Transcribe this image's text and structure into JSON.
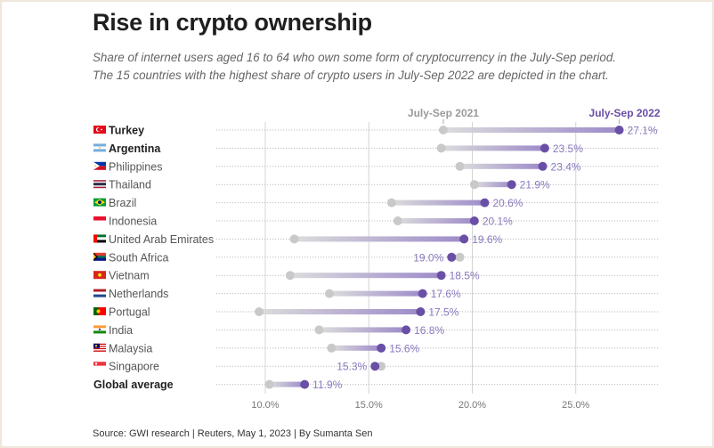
{
  "title": "Rise in crypto ownership",
  "subtitle_lines": [
    "Share of internet users aged 16 to 64 who own some form of cryptocurrency in the July-Sep period.",
    "The 15 countries with the highest share of crypto users in July-Sep 2022 are depicted in the chart."
  ],
  "source": "Source: GWI research | Reuters, May 1, 2023 | By Sumanta Sen",
  "colors": {
    "accent_2022": "#6a4fa6",
    "dot_2021": "#c9c9c9",
    "label_2022": "#8a78bd",
    "grid": "#d4d4d4",
    "header_2021": "#9a9a9a"
  },
  "chart_data": {
    "type": "dumbbell",
    "title": "Rise in crypto ownership",
    "xlabel": "",
    "ylabel": "",
    "xlim": [
      7.5,
      29.5
    ],
    "x_ticks": [
      10,
      15,
      20,
      25
    ],
    "x_tick_labels": [
      "10.0%",
      "15.0%",
      "20.0%",
      "25.0%"
    ],
    "grid": true,
    "series": [
      {
        "name": "July-Sep 2021"
      },
      {
        "name": "July-Sep 2022"
      }
    ],
    "rows": [
      {
        "country": "Turkey",
        "flag": "turkey-flag",
        "bold": true,
        "v2021": 18.6,
        "v2022": 27.1,
        "label": "27.1%"
      },
      {
        "country": "Argentina",
        "flag": "argentina-flag",
        "bold": true,
        "v2021": 18.5,
        "v2022": 23.5,
        "label": "23.5%"
      },
      {
        "country": "Philippines",
        "flag": "philippines-flag",
        "bold": false,
        "v2021": 19.4,
        "v2022": 23.4,
        "label": "23.4%"
      },
      {
        "country": "Thailand",
        "flag": "thailand-flag",
        "bold": false,
        "v2021": 20.1,
        "v2022": 21.9,
        "label": "21.9%"
      },
      {
        "country": "Brazil",
        "flag": "brazil-flag",
        "bold": false,
        "v2021": 16.1,
        "v2022": 20.6,
        "label": "20.6%"
      },
      {
        "country": "Indonesia",
        "flag": "indonesia-flag",
        "bold": false,
        "v2021": 16.4,
        "v2022": 20.1,
        "label": "20.1%"
      },
      {
        "country": "United Arab Emirates",
        "flag": "uae-flag",
        "bold": false,
        "v2021": 11.4,
        "v2022": 19.6,
        "label": "19.6%"
      },
      {
        "country": "South Africa",
        "flag": "south-africa-flag",
        "bold": false,
        "v2021": 19.4,
        "v2022": 19.0,
        "label": "19.0%"
      },
      {
        "country": "Vietnam",
        "flag": "vietnam-flag",
        "bold": false,
        "v2021": 11.2,
        "v2022": 18.5,
        "label": "18.5%"
      },
      {
        "country": "Netherlands",
        "flag": "netherlands-flag",
        "bold": false,
        "v2021": 13.1,
        "v2022": 17.6,
        "label": "17.6%"
      },
      {
        "country": "Portugal",
        "flag": "portugal-flag",
        "bold": false,
        "v2021": 9.7,
        "v2022": 17.5,
        "label": "17.5%"
      },
      {
        "country": "India",
        "flag": "india-flag",
        "bold": false,
        "v2021": 12.6,
        "v2022": 16.8,
        "label": "16.8%"
      },
      {
        "country": "Malaysia",
        "flag": "malaysia-flag",
        "bold": false,
        "v2021": 13.2,
        "v2022": 15.6,
        "label": "15.6%"
      },
      {
        "country": "Singapore",
        "flag": "singapore-flag",
        "bold": false,
        "v2021": 15.6,
        "v2022": 15.3,
        "label": "15.3%"
      },
      {
        "country": "Global average",
        "flag": null,
        "bold": true,
        "v2021": 10.2,
        "v2022": 11.9,
        "label": "11.9%"
      }
    ],
    "annotations": [
      {
        "text": "July-Sep 2021",
        "series": "July-Sep 2021",
        "anchor_row": "Turkey"
      },
      {
        "text": "July-Sep 2022",
        "series": "July-Sep 2022",
        "anchor_row": "Turkey"
      }
    ]
  }
}
